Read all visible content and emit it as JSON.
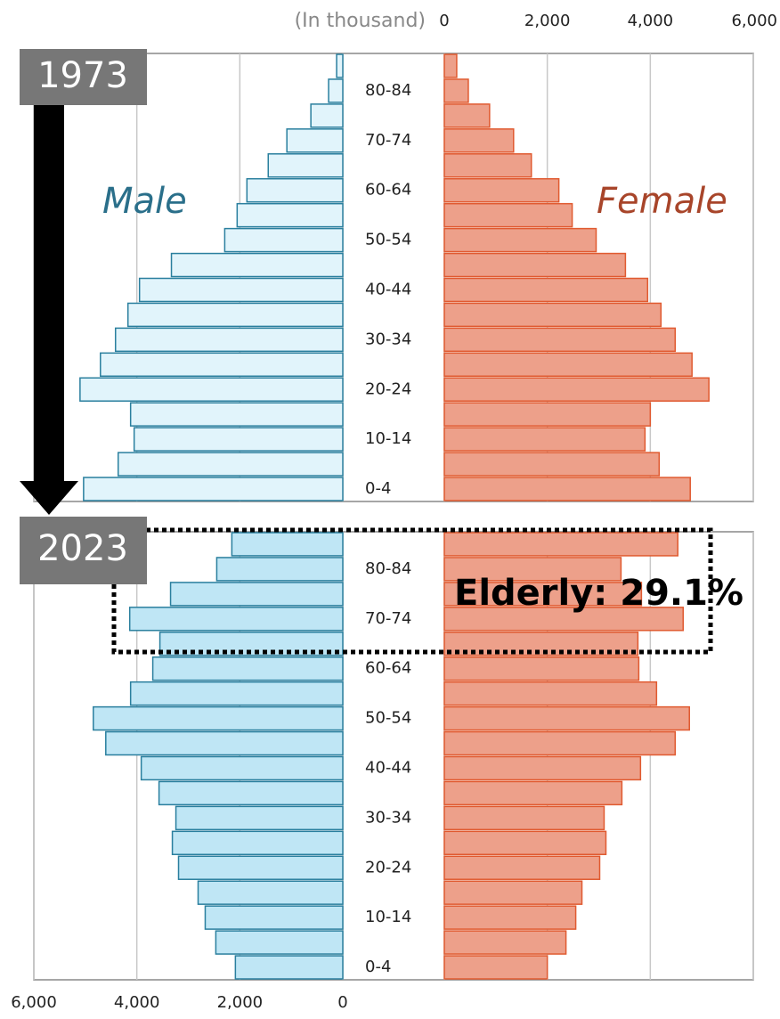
{
  "chart_data": {
    "type": "pyramid",
    "axis_title": "(In thousand)",
    "male_label": "Male",
    "female_label": "Female",
    "male_text_color": "#2a6f8a",
    "female_text_color": "#a8452a",
    "male_stroke": "#2a7f9e",
    "female_stroke": "#e05a30",
    "categories": [
      "0-4",
      null,
      "10-14",
      null,
      "20-24",
      null,
      "30-34",
      null,
      "40-44",
      null,
      "50-54",
      null,
      "60-64",
      null,
      "70-74",
      null,
      "80-84",
      null
    ],
    "xlim": [
      0,
      6000
    ],
    "female_xticks": [
      0,
      {
        "value": 2000,
        "label": "2,000"
      },
      {
        "value": 4000,
        "label": "4,000"
      },
      {
        "value": 6000,
        "label": "6,000"
      }
    ],
    "male_xticks": [
      0,
      {
        "value": 2000,
        "label": "2,000"
      },
      {
        "value": 4000,
        "label": "4,000"
      },
      {
        "value": 6000,
        "label": "6,000"
      }
    ],
    "grid": true,
    "panels": [
      {
        "year": "1973",
        "male_color": "#e1f4fb",
        "female_color": "#eda08a",
        "male": [
          5034,
          4362,
          4052,
          4121,
          5103,
          4707,
          4414,
          4172,
          3948,
          3328,
          2293,
          2052,
          1862,
          1448,
          1086,
          620,
          276,
          120
        ],
        "female": [
          4776,
          4172,
          3897,
          4000,
          5138,
          4810,
          4483,
          4207,
          3948,
          3517,
          2948,
          2483,
          2224,
          1690,
          1345,
          879,
          466,
          241
        ]
      },
      {
        "year": "2023",
        "male_color": "#bfe6f5",
        "female_color": "#eda08a",
        "male": [
          2086,
          2466,
          2672,
          2810,
          3190,
          3310,
          3241,
          3569,
          3914,
          4603,
          4845,
          4121,
          3690,
          3552,
          4138,
          3345,
          2448,
          2155
        ],
        "female": [
          2000,
          2362,
          2552,
          2672,
          3017,
          3138,
          3103,
          3448,
          3810,
          4483,
          4759,
          4121,
          3776,
          3759,
          4638,
          3828,
          3431,
          4534
        ],
        "annotation": "Elderly: 29.1%"
      }
    ]
  }
}
